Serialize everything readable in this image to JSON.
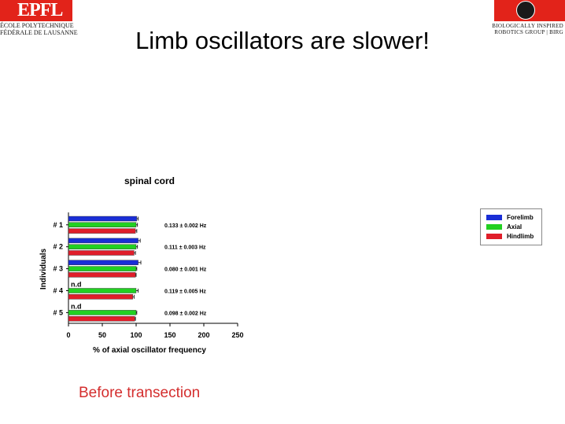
{
  "logos": {
    "left_mark": "EPFL",
    "left_line1": "ÉCOLE POLYTECHNIQUE",
    "left_line2": "FÉDÉRALE DE LAUSANNE",
    "right_line1": "BIOLOGICALLY INSPIRED",
    "right_line2": "ROBOTICS GROUP | BIRG"
  },
  "slide": {
    "title": "Limb oscillators are slower!",
    "caption": "Before transection"
  },
  "chart_data": {
    "type": "bar",
    "orientation": "horizontal",
    "title": "spinal cord",
    "xlabel": "% of axial oscillator frequency",
    "ylabel": "Individuals",
    "xlim": [
      0,
      250
    ],
    "xticks": [
      0,
      50,
      100,
      150,
      200,
      250
    ],
    "categories": [
      "# 1",
      "# 2",
      "# 3",
      "# 4",
      "# 5"
    ],
    "series": [
      {
        "name": "Forelimb",
        "color": "#1a2ed6",
        "values": [
          101,
          103,
          103,
          null,
          null
        ],
        "errors": [
          2,
          3,
          4,
          null,
          null
        ]
      },
      {
        "name": "Axial",
        "color": "#22d022",
        "values": [
          100,
          100,
          100,
          100,
          100
        ],
        "errors": [
          2,
          2,
          1,
          3,
          1
        ]
      },
      {
        "name": "Hindlimb",
        "color": "#e01e2a",
        "values": [
          99,
          97,
          99,
          95,
          98
        ],
        "errors": [
          2,
          2,
          1,
          2,
          1
        ]
      }
    ],
    "not_determined_label": "n.d",
    "annotations": [
      "0.133 ± 0.002 Hz",
      "0.111 ± 0.003 Hz",
      "0.080 ± 0.001 Hz",
      "0.119 ± 0.005 Hz",
      "0.098 ± 0.002 Hz"
    ],
    "legend_position": "right",
    "grid": false
  }
}
